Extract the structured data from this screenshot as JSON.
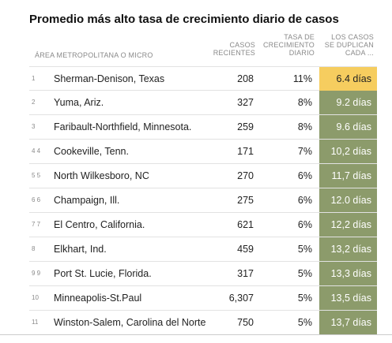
{
  "title": "Promedio más alto tasa de crecimiento diario de casos",
  "columns": {
    "area": "ÁREA METROPOLITANA O MICRO",
    "cases_line1": "CASOS",
    "cases_line2": "RECIENTES",
    "rate_line1": "TASA DE",
    "rate_line2": "CRECIMIENTO",
    "rate_line3": "DIARIO",
    "double_line1": "LOS CASOS",
    "double_line2": "SE DUPLICAN",
    "double_line3": "CADA ..."
  },
  "colors": {
    "highlight": "#f6cd5f",
    "cell": "#8c9b6b"
  },
  "rows": [
    {
      "rank": "1",
      "name": "Sherman-Denison, Texas",
      "cases": "208",
      "rate": "11%",
      "doubling": "6.4 días",
      "highlight": true
    },
    {
      "rank": "2",
      "name": "Yuma, Ariz.",
      "cases": "327",
      "rate": "8%",
      "doubling": "9.2 días",
      "highlight": false
    },
    {
      "rank": "3",
      "name": "Faribault-Northfield, Minnesota.",
      "cases": "259",
      "rate": "8%",
      "doubling": "9.6 días",
      "highlight": false
    },
    {
      "rank": "4 4",
      "name": "Cookeville, Tenn.",
      "cases": "171",
      "rate": "7%",
      "doubling": "10,2 días",
      "highlight": false
    },
    {
      "rank": "5 5",
      "name": "North Wilkesboro, NC",
      "cases": "270",
      "rate": "6%",
      "doubling": "11,7 días",
      "highlight": false
    },
    {
      "rank": "6 6",
      "name": "Champaign, Ill.",
      "cases": "275",
      "rate": "6%",
      "doubling": "12.0 días",
      "highlight": false
    },
    {
      "rank": "7 7",
      "name": "El Centro, California.",
      "cases": "621",
      "rate": "6%",
      "doubling": "12,2 días",
      "highlight": false
    },
    {
      "rank": "8",
      "name": "Elkhart, Ind.",
      "cases": "459",
      "rate": "5%",
      "doubling": "13,2 días",
      "highlight": false
    },
    {
      "rank": "9 9",
      "name": "Port St. Lucie, Florida.",
      "cases": "317",
      "rate": "5%",
      "doubling": "13,3 días",
      "highlight": false
    },
    {
      "rank": "10",
      "name": "Minneapolis-St.Paul",
      "cases": "6,307",
      "rate": "5%",
      "doubling": "13,5 días",
      "highlight": false
    },
    {
      "rank": "11",
      "name": "Winston-Salem, Carolina del Norte",
      "cases": "750",
      "rate": "5%",
      "doubling": "13,7 días",
      "highlight": false
    }
  ]
}
